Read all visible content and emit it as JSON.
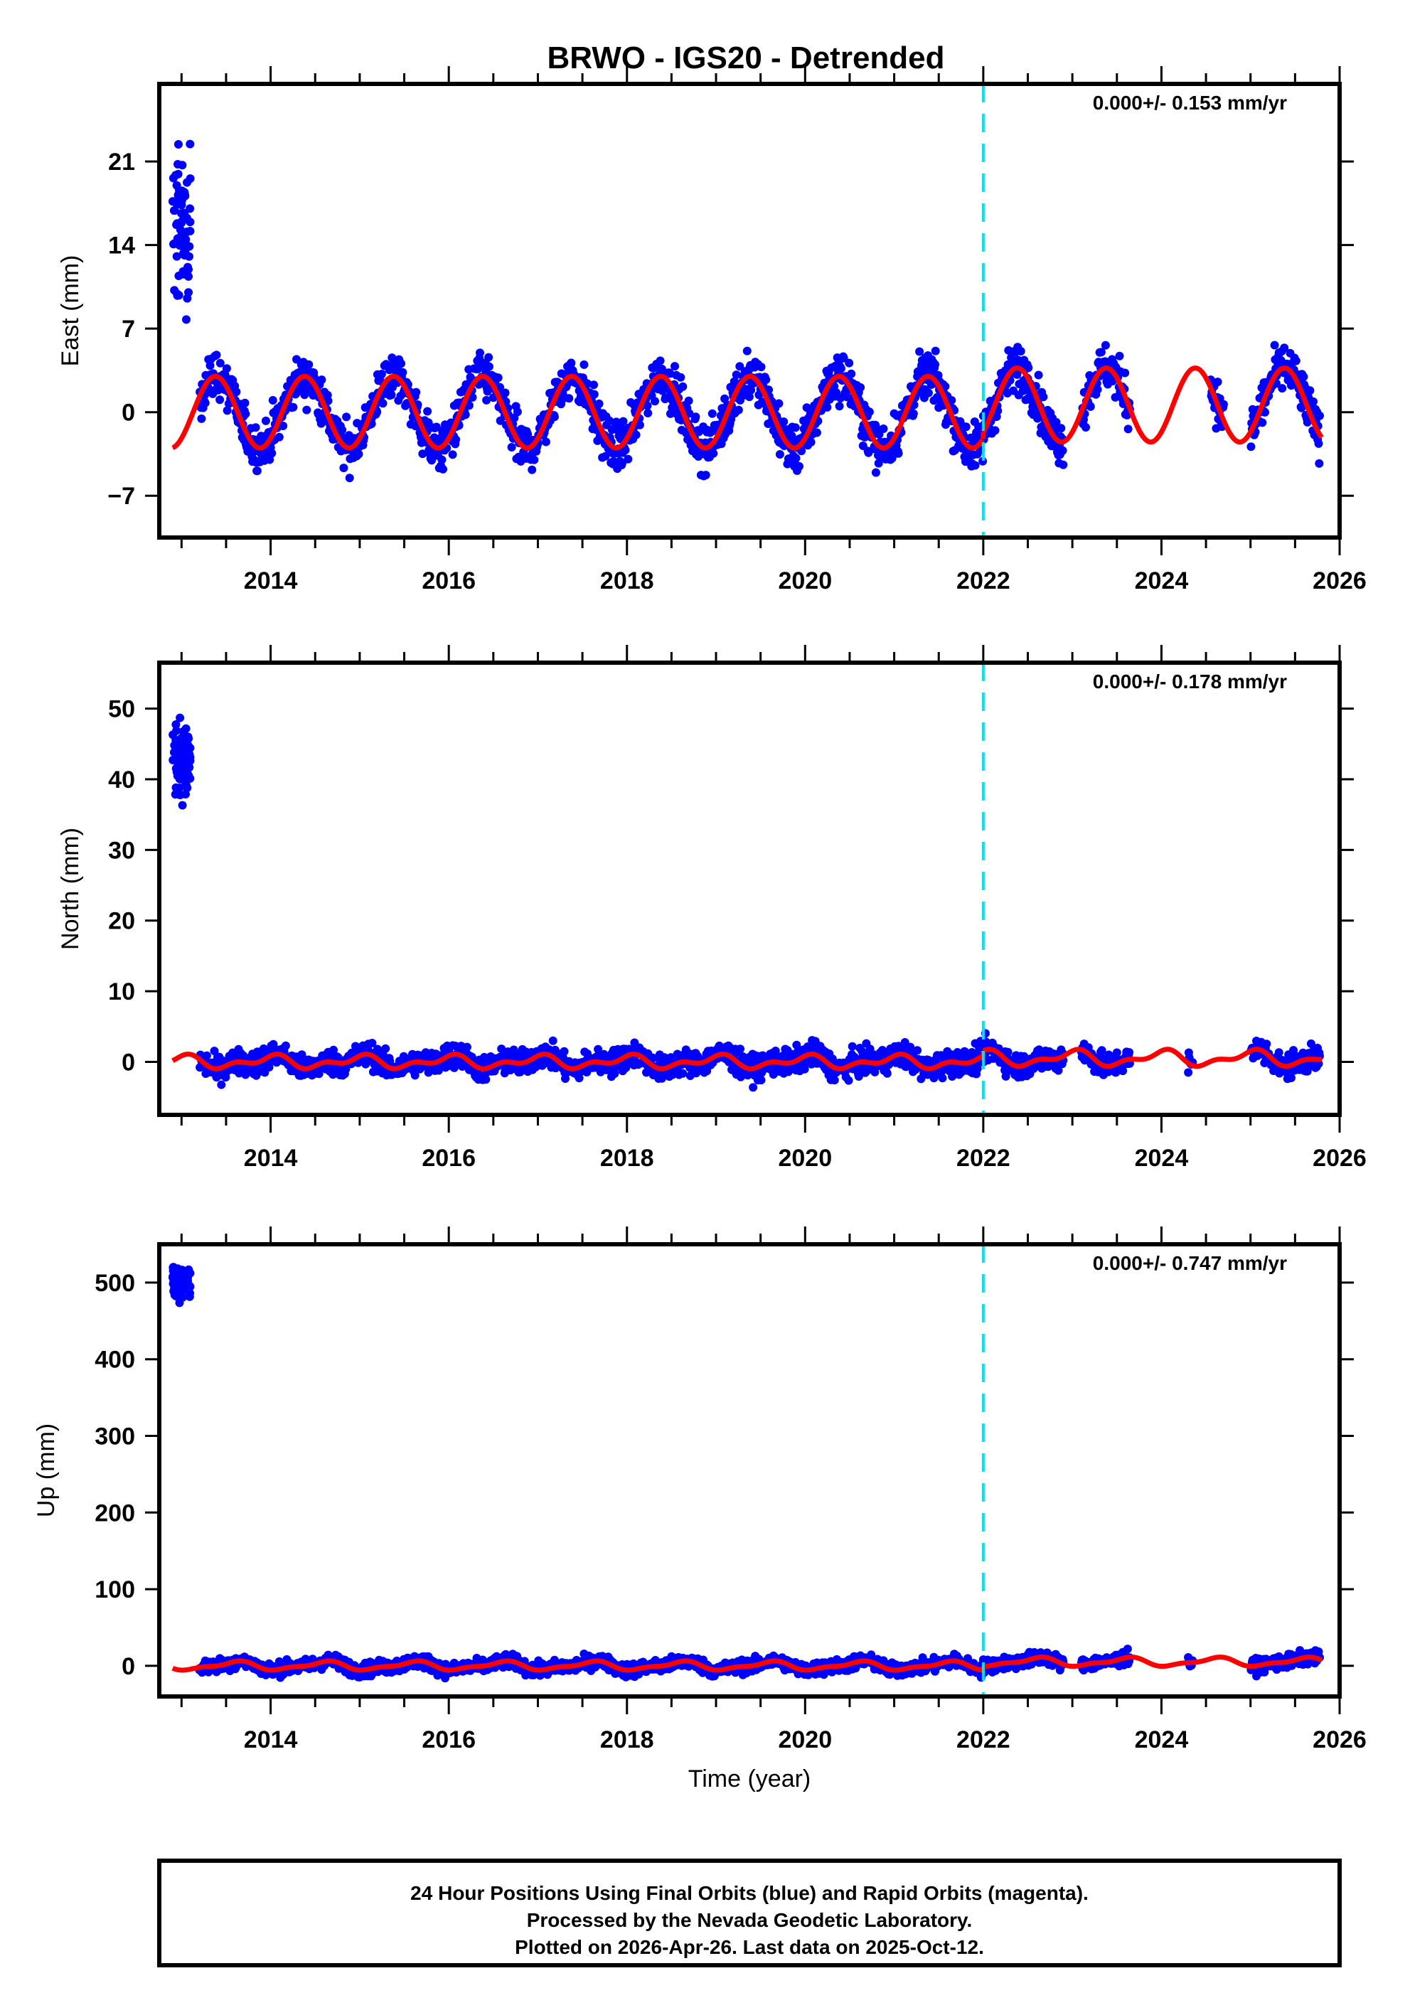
{
  "chart_data": {
    "type": "scatter",
    "title": "BRWO - IGS20 - Detrended",
    "xlabel": "Time (year)",
    "xlim": [
      2012.75,
      2026.0
    ],
    "xticks": [
      2014,
      2016,
      2018,
      2020,
      2022,
      2024,
      2026
    ],
    "xtick_labels": [
      "2014",
      "2016",
      "2018",
      "2020",
      "2022",
      "2024",
      "2026"
    ],
    "grid": false,
    "event_line": {
      "x": 2022.0,
      "color": "#00e5ee",
      "style": "dashed"
    },
    "colors": {
      "points": "#0000ff",
      "model": "#ff0000",
      "frame": "#000000"
    },
    "panels": [
      {
        "name": "east",
        "ylabel": "East (mm)",
        "ylim": [
          -10.5,
          27.5
        ],
        "yticks": [
          -7,
          0,
          7,
          14,
          21
        ],
        "ytick_labels": [
          "−7",
          "0",
          "7",
          "14",
          "21"
        ],
        "rate_label": "0.000+/- 0.153 mm/yr",
        "model": {
          "amplitude": 3.0,
          "amplitude_after_event": 3.1,
          "offset_after_event": 0.6,
          "phase_peak": 0.38,
          "semiannual": 0.0,
          "start": 2012.9,
          "end": 2025.8
        },
        "early_cluster": {
          "start": 2012.9,
          "end": 2013.1,
          "mean": 15.0,
          "spread": 5.5
        },
        "scatter_sd": 1.3,
        "gaps": [
          [
            2022.9,
            2023.1
          ],
          [
            2023.65,
            2024.55
          ],
          [
            2024.7,
            2025.0
          ]
        ],
        "data_start": 2013.2,
        "data_end": 2025.78
      },
      {
        "name": "north",
        "ylabel": "North (mm)",
        "ylim": [
          -7.5,
          56.5
        ],
        "yticks": [
          0,
          10,
          20,
          30,
          40,
          50
        ],
        "ytick_labels": [
          "0",
          "10",
          "20",
          "30",
          "40",
          "50"
        ],
        "rate_label": "0.000+/- 0.178 mm/yr",
        "model": {
          "amplitude": 0.7,
          "amplitude_after_event": 0.9,
          "offset_after_event": 0.5,
          "phase_peak": 0.0,
          "semiannual": 0.5,
          "start": 2012.9,
          "end": 2025.8
        },
        "early_cluster": {
          "start": 2012.9,
          "end": 2013.1,
          "mean": 43.0,
          "spread": 4.5
        },
        "scatter_sd": 1.2,
        "gaps": [
          [
            2022.9,
            2023.1
          ],
          [
            2023.65,
            2024.3
          ],
          [
            2024.35,
            2025.0
          ]
        ],
        "data_start": 2013.2,
        "data_end": 2025.78
      },
      {
        "name": "up",
        "ylabel": "Up (mm)",
        "ylim": [
          -40,
          550
        ],
        "yticks": [
          0,
          100,
          200,
          300,
          400,
          500
        ],
        "ytick_labels": [
          "0",
          "100",
          "200",
          "300",
          "400",
          "500"
        ],
        "rate_label": "0.000+/- 0.747 mm/yr",
        "model": {
          "amplitude": 5.0,
          "amplitude_after_event": 5.0,
          "offset_after_event": 5.0,
          "phase_peak": 0.6,
          "semiannual": 2.0,
          "start": 2012.9,
          "end": 2025.8
        },
        "early_cluster": {
          "start": 2012.9,
          "end": 2013.1,
          "mean": 500.0,
          "spread": 18.0
        },
        "scatter_sd": 6.0,
        "gaps": [
          [
            2022.9,
            2023.1
          ],
          [
            2023.65,
            2024.3
          ],
          [
            2024.35,
            2025.0
          ]
        ],
        "data_start": 2013.2,
        "data_end": 2025.78
      }
    ]
  },
  "footer": {
    "lines": [
      "24 Hour Positions Using Final Orbits (blue) and Rapid Orbits (magenta).",
      "Processed by the Nevada Geodetic Laboratory.",
      "Plotted on 2026-Apr-26. Last data on 2025-Oct-12."
    ]
  }
}
